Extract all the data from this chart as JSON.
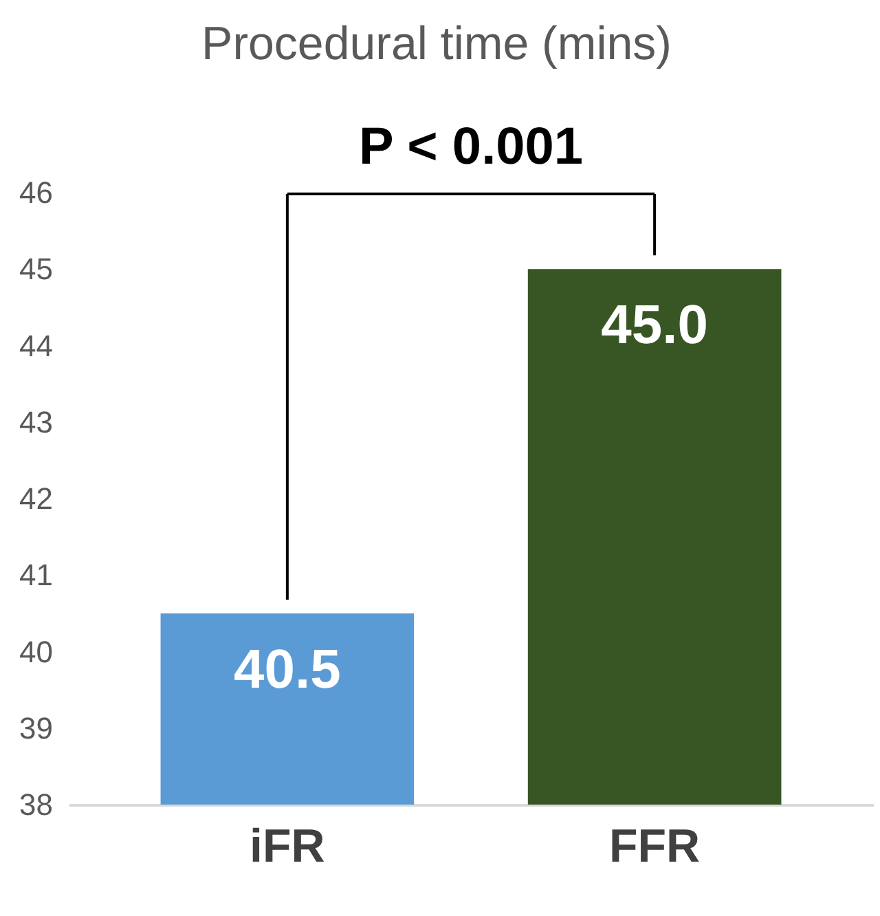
{
  "chart_data": {
    "type": "bar",
    "title": "Procedural time (mins)",
    "categories": [
      "iFR",
      "FFR"
    ],
    "values": [
      40.5,
      45.0
    ],
    "colors": [
      "#5b9bd5",
      "#375623"
    ],
    "value_labels": [
      "40.5",
      "45.0"
    ],
    "ylim": [
      38,
      46
    ],
    "yticks": [
      38,
      39,
      40,
      41,
      42,
      43,
      44,
      45,
      46
    ],
    "annotations": [
      "P < 0.001"
    ],
    "grid": false
  }
}
